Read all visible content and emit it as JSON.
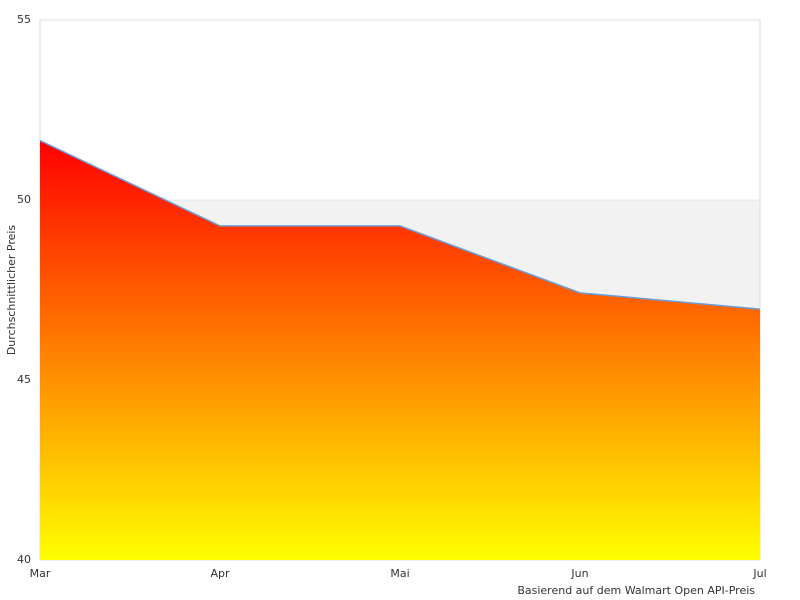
{
  "chart_data": {
    "type": "area",
    "y_label": "Durchschnittlicher Preis",
    "x_label": "Basierend auf dem Walmart Open API-Preis",
    "categories": [
      "Mar",
      "Apr",
      "Mai",
      "Jun",
      "Jul"
    ],
    "series": [
      {
        "color": "#6a9fd8",
        "values": [
          51.65,
          49.28,
          49.28,
          47.42,
          46.97
        ]
      }
    ],
    "fill_gradient": [
      "#ff0000",
      "#ffff00"
    ],
    "ylim": [
      40,
      55
    ],
    "yticks": [
      40,
      45,
      50,
      55
    ],
    "band_color": "#f2f2f2",
    "alternate_bands": true
  }
}
